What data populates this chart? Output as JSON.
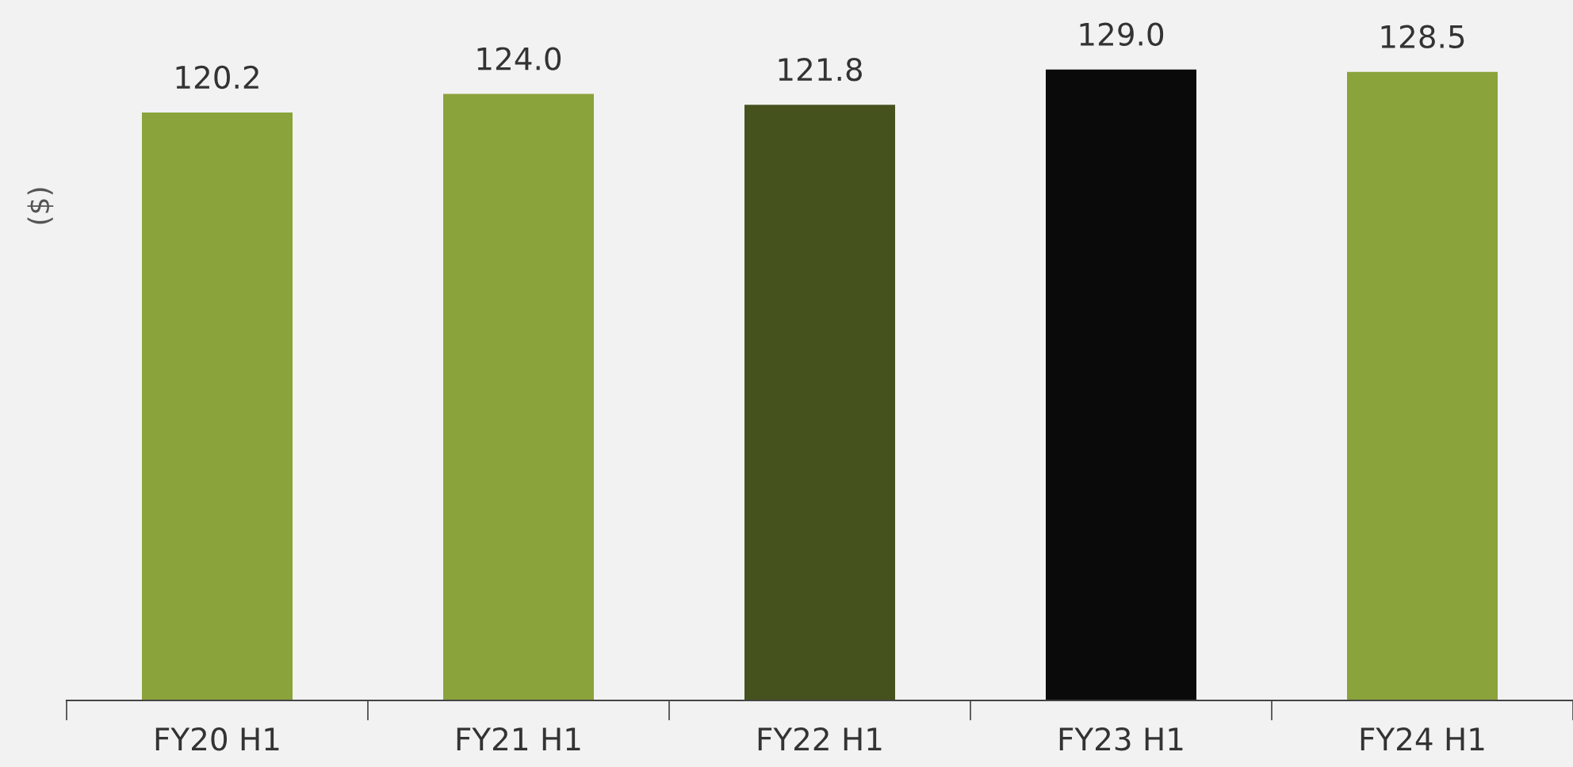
{
  "chart_data": {
    "type": "bar",
    "ylabel": "($)",
    "categories": [
      "FY20 H1",
      "FY21 H1",
      "FY22 H1",
      "FY23 H1",
      "FY24 H1"
    ],
    "values": [
      120.2,
      124.0,
      121.8,
      129.0,
      128.5
    ],
    "colors": [
      "#8ba33b",
      "#8ba33b",
      "#45521d",
      "#0a0a0a",
      "#8ba33b"
    ],
    "value_labels": [
      "120.2",
      "124.0",
      "121.8",
      "129.0",
      "128.5"
    ],
    "grid": false,
    "legend": false
  }
}
